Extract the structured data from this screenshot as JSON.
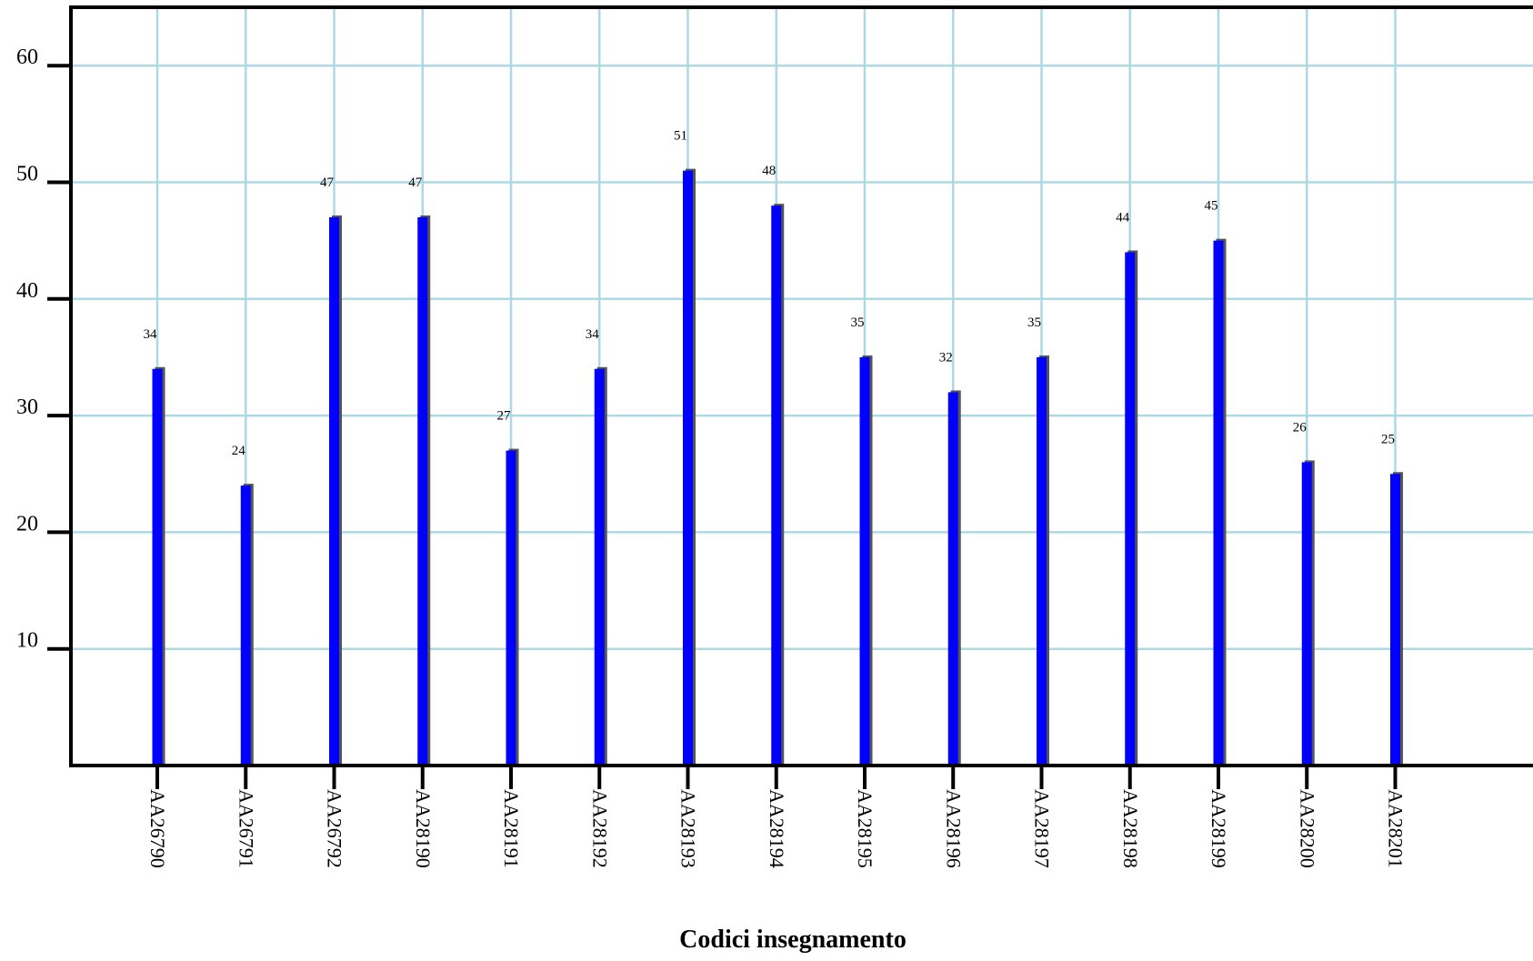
{
  "chart_data": {
    "type": "bar",
    "title": "",
    "xlabel": "Codici insegnamento",
    "ylabel": "",
    "categories": [
      "AA26790",
      "AA26791",
      "AA26792",
      "AA28190",
      "AA28191",
      "AA28192",
      "AA28193",
      "AA28194",
      "AA28195",
      "AA28196",
      "AA28197",
      "AA28198",
      "AA28199",
      "AA28200",
      "AA28201"
    ],
    "values": [
      34,
      24,
      47,
      47,
      27,
      34,
      51,
      48,
      35,
      32,
      35,
      44,
      45,
      26,
      25
    ],
    "value_labels": [
      "34",
      "24",
      "47",
      "47",
      "27",
      "34",
      "51",
      "48",
      "35",
      "32",
      "35",
      "44",
      "45",
      "26",
      "25"
    ],
    "y_ticks": [
      10,
      20,
      30,
      40,
      50,
      60
    ],
    "y_tick_labels": [
      "10",
      "20",
      "30",
      "40",
      "50",
      "60"
    ],
    "ylim": [
      0,
      65
    ],
    "grid": true,
    "legend": "none",
    "colors": {
      "bar": "#0000ff",
      "bar_shadow": "#555555",
      "grid": "#add8e6",
      "axis": "#000000"
    }
  }
}
